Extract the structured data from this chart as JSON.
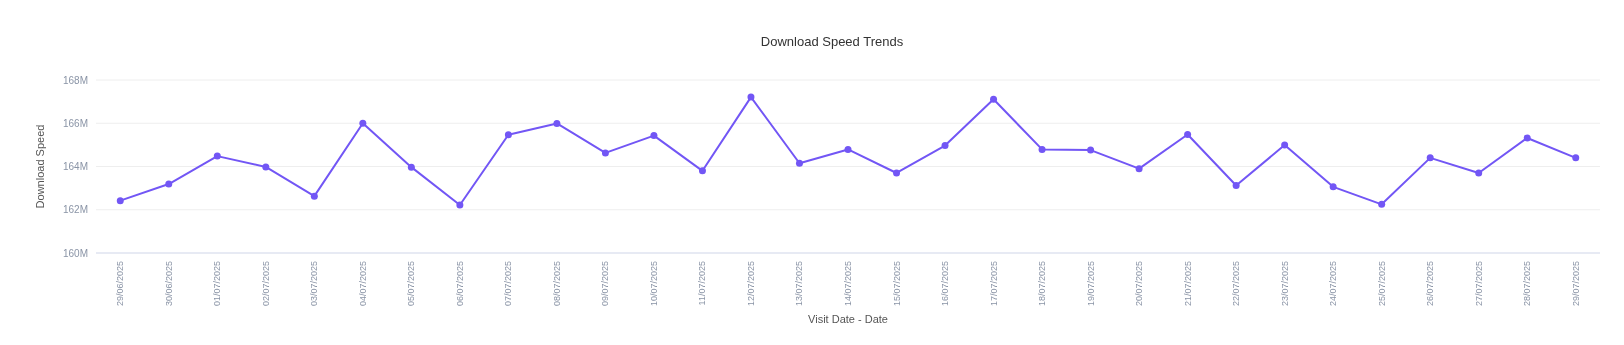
{
  "chart_data": {
    "type": "line",
    "title": "Download Speed Trends",
    "xlabel": "Visit Date - Date",
    "ylabel": "Download Speed",
    "categories": [
      "29/06/2025",
      "30/06/2025",
      "01/07/2025",
      "02/07/2025",
      "03/07/2025",
      "04/07/2025",
      "05/07/2025",
      "06/07/2025",
      "07/07/2025",
      "08/07/2025",
      "09/07/2025",
      "10/07/2025",
      "11/07/2025",
      "12/07/2025",
      "13/07/2025",
      "14/07/2025",
      "15/07/2025",
      "16/07/2025",
      "17/07/2025",
      "18/07/2025",
      "19/07/2025",
      "20/07/2025",
      "21/07/2025",
      "22/07/2025",
      "23/07/2025",
      "24/07/2025",
      "25/07/2025",
      "26/07/2025",
      "27/07/2025",
      "28/07/2025",
      "29/07/2025"
    ],
    "series": [
      {
        "color": "#7256f5",
        "values": [
          162420000,
          163190000,
          164480000,
          163980000,
          162630000,
          166000000,
          163970000,
          162220000,
          165470000,
          165990000,
          164630000,
          165430000,
          163800000,
          167210000,
          164150000,
          164790000,
          163700000,
          164970000,
          167110000,
          164790000,
          164760000,
          163900000,
          165480000,
          163120000,
          164990000,
          163060000,
          162250000,
          164400000,
          163700000,
          165320000,
          164400000
        ]
      }
    ],
    "ylim": [
      160000000,
      168000000
    ],
    "yticks": [
      {
        "value": 160000000,
        "label": "160M"
      },
      {
        "value": 162000000,
        "label": "162M"
      },
      {
        "value": 164000000,
        "label": "164M"
      },
      {
        "value": 166000000,
        "label": "166M"
      },
      {
        "value": 168000000,
        "label": "168M"
      }
    ],
    "grid": "y",
    "marker": "circle",
    "line_style": "solid"
  }
}
